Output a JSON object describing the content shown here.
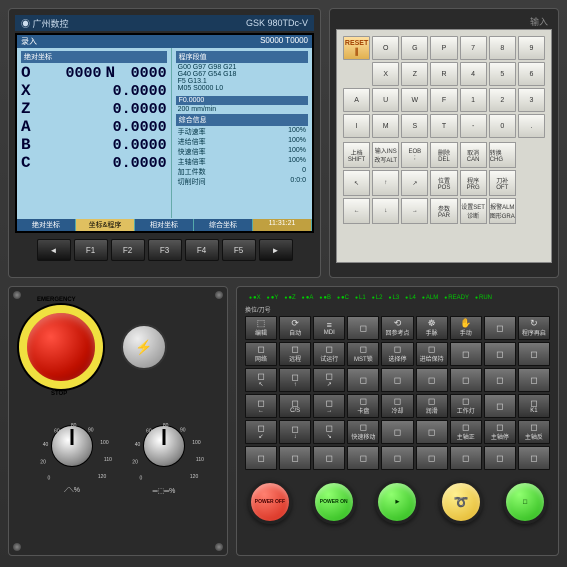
{
  "brand": {
    "logo": "◉ 广州数控",
    "model": "GSK 980TDc-V",
    "input_label": "输入"
  },
  "lcd": {
    "top_left": "录入",
    "top_right": "S0000  T0000",
    "sec_abs": "绝对坐标",
    "sec_prog": "程序段值",
    "axes": [
      {
        "a": "O",
        "v": "0000",
        "n": "N",
        "nv": "0000"
      },
      {
        "a": "X",
        "v": "0.0000"
      },
      {
        "a": "Z",
        "v": "0.0000"
      },
      {
        "a": "A",
        "v": "0.0000"
      },
      {
        "a": "B",
        "v": "0.0000"
      },
      {
        "a": "C",
        "v": "0.0000"
      }
    ],
    "prog_lines": [
      "G00 G97 G98 G21",
      "G40 G67 G54 G18",
      "F5 G13.1",
      "M05 S0000 L0"
    ],
    "feed_title": "F0.0000",
    "feed_sub": "200 mm/min",
    "info_title": "综合信息",
    "info": [
      {
        "k": "手动速率",
        "v": "100%"
      },
      {
        "k": "进给倍率",
        "v": "100%"
      },
      {
        "k": "快速倍率",
        "v": "100%"
      },
      {
        "k": "主轴倍率",
        "v": "100%"
      },
      {
        "k": "加工件数",
        "v": "0"
      },
      {
        "k": "切削时间",
        "v": "0:0:0"
      }
    ],
    "time": "11:31:21",
    "tabs": [
      "绝对坐标",
      "坐标&程序",
      "相对坐标",
      "综合坐标",
      ""
    ]
  },
  "fkeys": [
    "",
    "F1",
    "F2",
    "F3",
    "F4",
    "F5",
    ""
  ],
  "kp": {
    "reset": "RESET",
    "r1": [
      "O",
      "G",
      "P",
      "7",
      "8",
      "9"
    ],
    "r1s": [
      "",
      "",
      "",
      "",
      "",
      ""
    ],
    "r2": [
      "X",
      "Z",
      "R",
      "4",
      "5",
      "6"
    ],
    "r3": [
      "A",
      "U",
      "W",
      "F",
      "1",
      "2",
      "3"
    ],
    "r4": [
      "I",
      "M",
      "S",
      "T",
      "-",
      "0",
      "."
    ],
    "bot": [
      {
        "t": "上档",
        "s": "SHIFT"
      },
      {
        "t": "输入INS",
        "s": "改写ALT"
      },
      {
        "t": "EOB",
        "s": ";"
      },
      {
        "t": "删除",
        "s": "DEL"
      },
      {
        "t": "取消",
        "s": "CAN"
      },
      {
        "t": "转换CHG",
        "s": ""
      },
      {
        "t": "",
        "s": ""
      },
      {
        "t": "↖",
        "s": ""
      },
      {
        "t": "↑",
        "s": ""
      },
      {
        "t": "↗",
        "s": ""
      },
      {
        "t": "位置",
        "s": "POS"
      },
      {
        "t": "程序",
        "s": "PRG"
      },
      {
        "t": "刀补",
        "s": "OFT"
      },
      {
        "t": "",
        "s": ""
      },
      {
        "t": "←",
        "s": ""
      },
      {
        "t": "↓",
        "s": ""
      },
      {
        "t": "→",
        "s": ""
      },
      {
        "t": "参数",
        "s": "PAR"
      },
      {
        "t": "设置SET",
        "s": "诊断"
      },
      {
        "t": "报警ALM",
        "s": "图形GRA"
      },
      {
        "t": "",
        "s": ""
      }
    ]
  },
  "leds": [
    "●X",
    "●Y",
    "●Z",
    "●A",
    "●B",
    "●C",
    "L1",
    "L2",
    "L3",
    "L4",
    "ALM",
    "READY",
    "RUN"
  ],
  "mop_label": "换位/刀号",
  "mop": [
    [
      "编辑",
      "自动",
      "MDI",
      "",
      "回参考点",
      "手脉",
      "手动",
      "",
      "程序再启",
      "单段",
      "选跳",
      "机床锁",
      "手轮试切"
    ],
    [
      "网络",
      "远程",
      "试运行",
      "MST锁",
      "选择停",
      "进给保持",
      "",
      "",
      "",
      "F↓X1",
      "F↓X10",
      "F↓X100",
      "F↓X1000"
    ],
    [
      "↖",
      "↑",
      "↗",
      "",
      "",
      "",
      "",
      "",
      "",
      "JvX",
      "JvX10",
      "JvX50%",
      "JvX100%"
    ],
    [
      "←",
      "C/S",
      "→",
      "卡盘",
      "冷却",
      "润滑",
      "工作灯",
      "",
      "K1",
      "",
      "",
      "",
      ""
    ],
    [
      "↙",
      "↓",
      "↘",
      "快速移动",
      "",
      "",
      "主轴正",
      "主轴停",
      "主轴反",
      "K2",
      "",
      "",
      ""
    ],
    [
      "",
      "",
      "",
      "",
      "",
      "",
      "",
      "",
      "",
      "K3",
      "",
      "",
      ""
    ],
    [
      "",
      "",
      "",
      "",
      "",
      "",
      "",
      "",
      "",
      "K4",
      "",
      "",
      "进给保持"
    ]
  ],
  "rbtns": [
    {
      "t": "POWER OFF",
      "c": "red"
    },
    {
      "t": "POWER ON",
      "c": "grn"
    },
    {
      "t": "▶",
      "c": "grn"
    },
    {
      "t": "➰",
      "c": "yel"
    },
    {
      "t": "⬚",
      "c": "grn"
    }
  ],
  "knob_labels": [
    "⟋⟍%",
    "═⬚═%"
  ],
  "scale": [
    "0",
    "20",
    "40",
    "60",
    "80",
    "90",
    "100",
    "110",
    "120"
  ]
}
